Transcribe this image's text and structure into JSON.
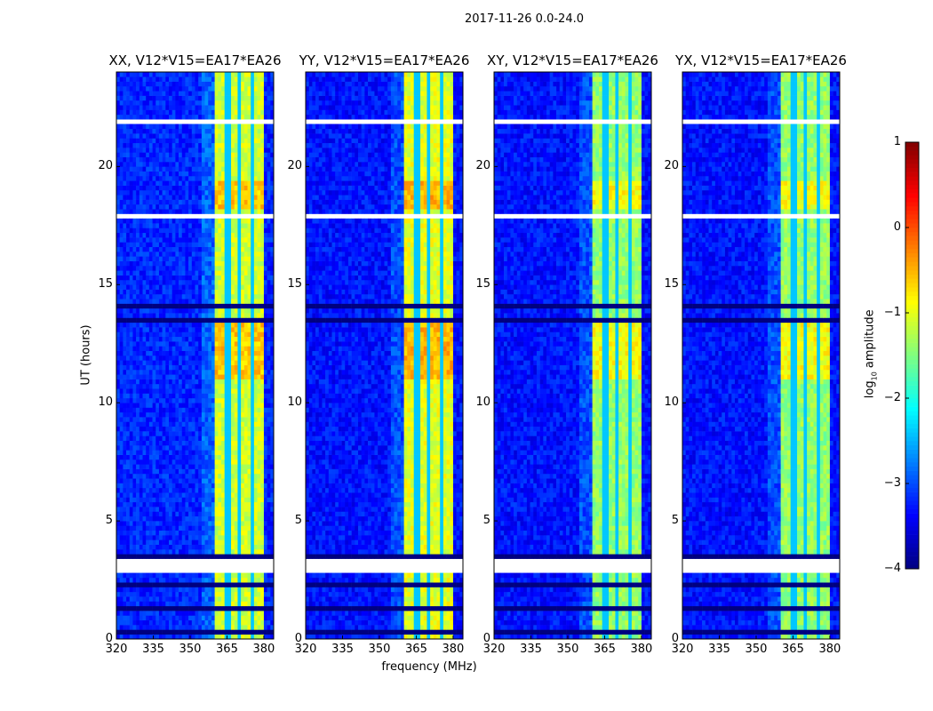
{
  "chart_data": {
    "type": "heatmap",
    "title": "2017-11-26 0.0-24.0",
    "xlabel": "frequency (MHz)",
    "ylabel": "UT (hours)",
    "xlim": [
      320,
      384
    ],
    "ylim": [
      0,
      24
    ],
    "xticks": [
      "320",
      "335",
      "350",
      "365",
      "380"
    ],
    "yticks": [
      "0",
      "5",
      "10",
      "15",
      "20"
    ],
    "colorbar": {
      "label": "log",
      "label_sub": "10",
      "label_rest": " amplitude",
      "range": [
        -4,
        1
      ],
      "ticks": [
        "1",
        "0",
        "−1",
        "−2",
        "−3",
        "−4"
      ],
      "colormap": "jet"
    },
    "panels": [
      {
        "title": "XX, V12*V15=EA17*EA26",
        "background_level": -3.2,
        "band_level": -1.1
      },
      {
        "title": "YY, V12*V15=EA17*EA26",
        "background_level": -3.3,
        "band_level": -1.0
      },
      {
        "title": "XY, V12*V15=EA17*EA26",
        "background_level": -3.3,
        "band_level": -1.4
      },
      {
        "title": "YX, V12*V15=EA17*EA26",
        "background_level": -3.3,
        "band_level": -1.4
      }
    ],
    "band_mhz": [
      360.5,
      380
    ],
    "subband_gaps_mhz": [
      365.3,
      370.2,
      375.1
    ],
    "bright_hours": [
      [
        11,
        13.5
      ],
      [
        18.2,
        19.5
      ]
    ],
    "flagged_hours": [
      [
        2.8,
        3.4
      ],
      [
        17.8,
        18.1
      ],
      [
        21.8,
        22.1
      ],
      [
        9.6,
        9.7
      ],
      [
        15.6,
        15.7
      ]
    ],
    "dropout_hours": [
      [
        0.3,
        0.4
      ],
      [
        0.8,
        0.9
      ],
      [
        1.3,
        1.4
      ],
      [
        2.0,
        2.1
      ],
      [
        2.3,
        2.4
      ],
      [
        3.5,
        3.6
      ],
      [
        8.8,
        8.9
      ],
      [
        9.2,
        9.3
      ],
      [
        13.5,
        13.6
      ],
      [
        14.1,
        14.2
      ],
      [
        17.4,
        17.5
      ],
      [
        22.8,
        22.9
      ],
      [
        23.2,
        23.3
      ]
    ]
  }
}
